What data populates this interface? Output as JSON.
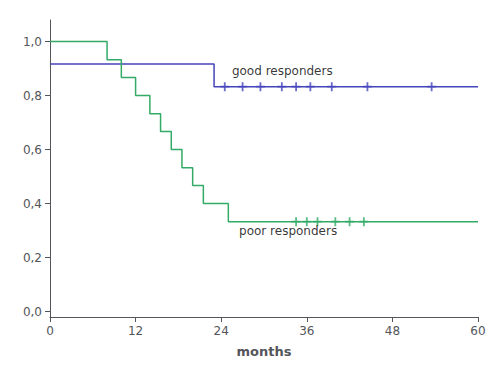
{
  "chart_data": {
    "type": "line",
    "xlabel": "months",
    "xlim": [
      0,
      60
    ],
    "xticks": [
      0,
      12,
      24,
      36,
      48,
      60
    ],
    "ylim": [
      -0.02,
      1.08
    ],
    "yticks": [
      {
        "value": 0.0,
        "label": "0,0"
      },
      {
        "value": 0.2,
        "label": "0,2"
      },
      {
        "value": 0.4,
        "label": "0,4"
      },
      {
        "value": 0.6,
        "label": "0,6"
      },
      {
        "value": 0.8,
        "label": "0,8"
      },
      {
        "value": 1.0,
        "label": "1,0"
      }
    ],
    "grid": false,
    "series": [
      {
        "type": "line",
        "line_style": "step",
        "color": "#4444bb",
        "x": [
          0,
          8,
          8,
          23,
          23,
          60
        ],
        "values": [
          0.917,
          0.917,
          0.917,
          0.917,
          0.833,
          0.833
        ]
      },
      {
        "type": "line",
        "line_style": "step",
        "color": "#33aa66",
        "x": [
          0,
          8,
          8,
          10,
          10,
          12,
          12,
          14,
          14,
          15.5,
          15.5,
          17,
          17,
          18.5,
          18.5,
          20,
          20,
          21.5,
          21.5,
          23,
          23,
          25,
          25,
          34,
          34,
          60
        ],
        "values": [
          1.0,
          1.0,
          0.933,
          0.933,
          0.867,
          0.867,
          0.8,
          0.8,
          0.733,
          0.733,
          0.667,
          0.667,
          0.6,
          0.6,
          0.533,
          0.533,
          0.467,
          0.467,
          0.4,
          0.4,
          0.4,
          0.4,
          0.333,
          0.333,
          0.333,
          0.333
        ]
      },
      {
        "type": "scatter",
        "marker": "plus",
        "color": "#4444bb",
        "x": [
          24.5,
          27,
          29.5,
          32.5,
          34.5,
          36.5,
          39.5,
          44.5,
          53.5
        ],
        "values": [
          0.833,
          0.833,
          0.833,
          0.833,
          0.833,
          0.833,
          0.833,
          0.833,
          0.833
        ]
      },
      {
        "type": "scatter",
        "marker": "plus",
        "color": "#33aa66",
        "x": [
          34.5,
          36,
          37.5,
          40,
          42,
          44
        ],
        "values": [
          0.333,
          0.333,
          0.333,
          0.333,
          0.333,
          0.333
        ]
      }
    ],
    "annotations": [
      {
        "text": "good responders",
        "x": 25.5,
        "y": 0.868
      },
      {
        "text": "poor responders",
        "x": 26.5,
        "y": 0.275
      }
    ]
  }
}
